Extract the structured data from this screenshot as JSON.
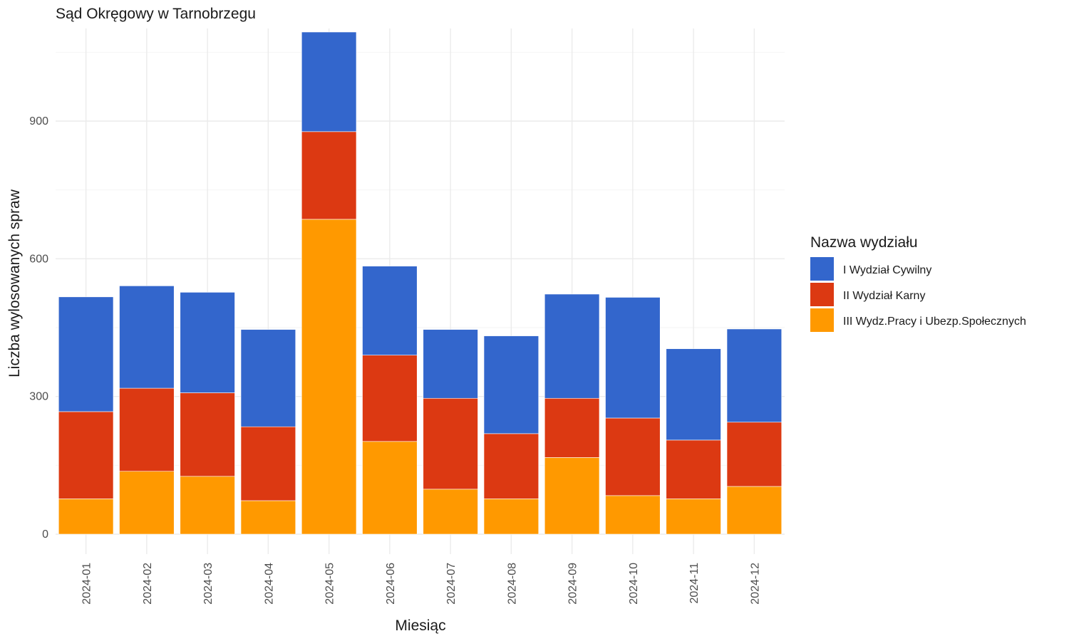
{
  "chart_data": {
    "type": "bar",
    "stacked": true,
    "title": "Sąd Okręgowy w Tarnobrzegu",
    "xlabel": "Miesiąc",
    "ylabel": "Liczba wylosowanych spraw",
    "ylim": [
      0,
      1100
    ],
    "yticks": [
      0,
      300,
      600,
      900
    ],
    "grid": true,
    "legend_position": "right",
    "legend_title": "Nazwa wydziału",
    "categories": [
      "2024-01",
      "2024-02",
      "2024-03",
      "2024-04",
      "2024-05",
      "2024-06",
      "2024-07",
      "2024-08",
      "2024-09",
      "2024-10",
      "2024-11",
      "2024-12"
    ],
    "series": [
      {
        "name": "III Wydz.Pracy i Ubezp.Społecznych",
        "color": "#FF9900",
        "values": [
          77,
          137,
          126,
          73,
          686,
          202,
          98,
          77,
          167,
          84,
          77,
          104
        ]
      },
      {
        "name": "II Wydział Karny",
        "color": "#DC3912",
        "values": [
          190,
          181,
          182,
          161,
          191,
          188,
          198,
          142,
          129,
          169,
          128,
          140
        ]
      },
      {
        "name": "I Wydział Cywilny",
        "color": "#3366CC",
        "values": [
          250,
          223,
          219,
          212,
          217,
          194,
          150,
          213,
          227,
          263,
          199,
          203
        ]
      }
    ],
    "legend_order": [
      "I Wydział Cywilny",
      "II Wydział Karny",
      "III Wydz.Pracy i Ubezp.Społecznych"
    ]
  }
}
